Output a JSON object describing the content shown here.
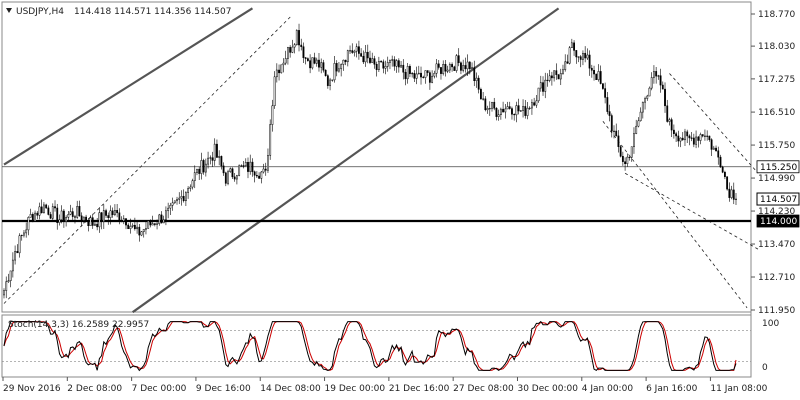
{
  "header": {
    "symbol": "USDJPY,H4",
    "ohlc": "114.418 114.571 114.356 114.507"
  },
  "stoch_header": "Stoch(14,3,3) 16.2589 22.9957",
  "colors": {
    "candle": "#000000",
    "channel_line": "#555555",
    "support_line": "#000000",
    "stoch_main": "#000000",
    "stoch_signal": "#cc0000",
    "level_line": "#888888"
  },
  "chart_data": {
    "type": "candlestick",
    "title": "USDJPY,H4",
    "y_axis_ticks": [
      "118.770",
      "118.030",
      "117.275",
      "116.510",
      "115.750",
      "114.990",
      "114.230",
      "113.470",
      "112.710",
      "111.950"
    ],
    "y_range": [
      111.95,
      118.77
    ],
    "x_axis_ticks": [
      "29 Nov 2016",
      "2 Dec 08:00",
      "7 Dec 00:00",
      "9 Dec 16:00",
      "14 Dec 08:00",
      "19 Dec 00:00",
      "21 Dec 16:00",
      "27 Dec 08:00",
      "30 Dec 00:00",
      "4 Jan 00:00",
      "6 Jan 16:00",
      "11 Jan 08:00"
    ],
    "price_labels": [
      {
        "text": "115.250",
        "value": 115.25,
        "style": "outlined"
      },
      {
        "text": "114.507",
        "value": 114.507,
        "style": "current"
      },
      {
        "text": "114.000",
        "value": 114.0,
        "style": "filled"
      }
    ],
    "horizontal_lines": [
      {
        "value": 115.25,
        "style": "thin"
      },
      {
        "value": 114.0,
        "style": "thick"
      }
    ],
    "close_path": [
      [
        0,
        112.4
      ],
      [
        5,
        113.3
      ],
      [
        12,
        114.1
      ],
      [
        18,
        114.35
      ],
      [
        25,
        114.05
      ],
      [
        32,
        114.2
      ],
      [
        40,
        113.95
      ],
      [
        48,
        114.2
      ],
      [
        55,
        114.05
      ],
      [
        60,
        113.7
      ],
      [
        68,
        114.0
      ],
      [
        75,
        114.2
      ],
      [
        80,
        114.55
      ],
      [
        86,
        115.05
      ],
      [
        90,
        115.3
      ],
      [
        95,
        115.6
      ],
      [
        100,
        115.0
      ],
      [
        106,
        115.2
      ],
      [
        112,
        115.25
      ],
      [
        118,
        115.05
      ],
      [
        122,
        117.4
      ],
      [
        128,
        117.9
      ],
      [
        132,
        118.35
      ],
      [
        136,
        117.75
      ],
      [
        142,
        117.6
      ],
      [
        146,
        117.2
      ],
      [
        150,
        117.6
      ],
      [
        156,
        117.95
      ],
      [
        162,
        117.8
      ],
      [
        168,
        117.5
      ],
      [
        174,
        117.6
      ],
      [
        180,
        117.45
      ],
      [
        186,
        117.3
      ],
      [
        192,
        117.35
      ],
      [
        198,
        117.55
      ],
      [
        204,
        117.65
      ],
      [
        210,
        117.6
      ],
      [
        216,
        116.7
      ],
      [
        222,
        116.55
      ],
      [
        228,
        116.65
      ],
      [
        234,
        116.5
      ],
      [
        240,
        116.9
      ],
      [
        246,
        117.4
      ],
      [
        252,
        117.35
      ],
      [
        256,
        118.0
      ],
      [
        260,
        117.85
      ],
      [
        264,
        117.6
      ],
      [
        268,
        117.3
      ],
      [
        272,
        116.6
      ],
      [
        276,
        115.8
      ],
      [
        280,
        115.3
      ],
      [
        284,
        115.9
      ],
      [
        288,
        116.7
      ],
      [
        292,
        117.35
      ],
      [
        296,
        117.15
      ],
      [
        300,
        116.2
      ],
      [
        304,
        116.0
      ],
      [
        308,
        115.85
      ],
      [
        312,
        115.95
      ],
      [
        316,
        116.05
      ],
      [
        320,
        115.65
      ],
      [
        324,
        115.3
      ],
      [
        326,
        114.75
      ],
      [
        330,
        114.6
      ]
    ],
    "stochastic": {
      "name": "Stoch(14,3,3)",
      "main_value": 16.2589,
      "signal_value": 22.9957,
      "levels": [
        20,
        80
      ],
      "range": [
        0,
        100
      ],
      "scale_labels": [
        "100",
        "0"
      ]
    }
  }
}
